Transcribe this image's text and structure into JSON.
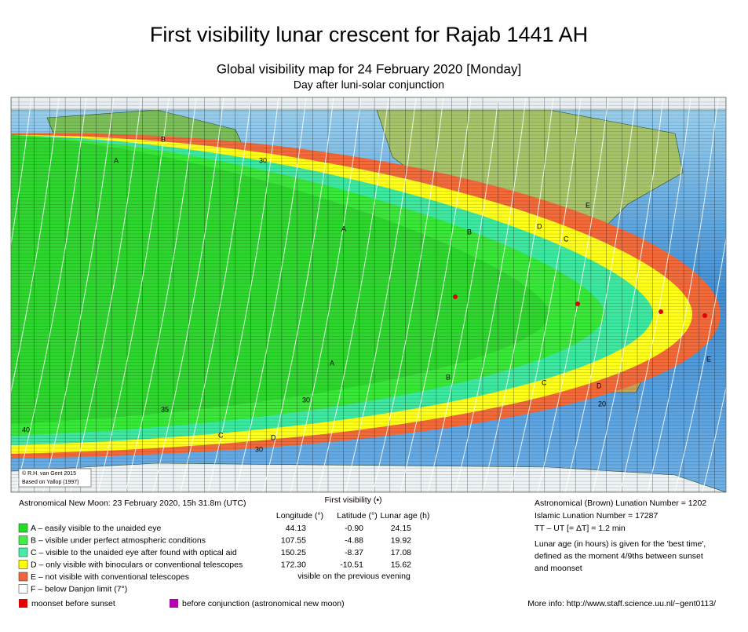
{
  "header": {
    "title": "First visibility lunar crescent for Rajab 1441 AH",
    "subtitle": "Global visibility map for 24 February 2020 [Monday]",
    "subtitle2": "Day after luni-solar conjunction"
  },
  "map": {
    "credits": [
      "© R.H. van Gent 2015",
      "Based on Yallop (1997)"
    ],
    "labels": [
      "A",
      "B",
      "C",
      "D",
      "E",
      "A",
      "B",
      "C",
      "D",
      "E",
      "30",
      "40",
      "30",
      "30",
      "35",
      "20",
      "A",
      "B",
      "C",
      "D"
    ],
    "zone_colors": {
      "A": "#2fd62f",
      "B": "#3ae83a",
      "C": "#3de9a0",
      "D": "#ffff1a",
      "E": "#f36a3a"
    }
  },
  "footer": {
    "new_moon": "Astronomical New Moon: 23 February 2020, 15h 31.8m (UTC)",
    "legend": [
      {
        "text": "A – easily visible to the unaided eye",
        "color": "#22dd22"
      },
      {
        "text": "B – visible under perfect atmospheric conditions",
        "color": "#44ee44"
      },
      {
        "text": "C – visible to the unaided eye after found with optical aid",
        "color": "#44eeaa"
      },
      {
        "text": "D – only visible with binoculars or conventional telescopes",
        "color": "#ffff00"
      },
      {
        "text": "E – not visible with conventional telescopes",
        "color": "#f0643c"
      },
      {
        "text": "F – below Danjon limit (7°)",
        "color": "#ffffff"
      }
    ],
    "extra_legend": [
      {
        "text": "moonset before sunset",
        "color": "#e00000"
      },
      {
        "text": "before conjunction (astronomical new moon)",
        "color": "#b000b0"
      }
    ],
    "first_visibility": {
      "title": "First visibility (•)",
      "columns": [
        "Longitude (°)",
        "Latitude (°)",
        "Lunar age (h)"
      ],
      "rows": [
        [
          "44.13",
          "-0.90",
          "24.15"
        ],
        [
          "107.55",
          "-4.88",
          "19.92"
        ],
        [
          "150.25",
          "-8.37",
          "17.08"
        ],
        [
          "172.30",
          "-10.51",
          "15.62"
        ]
      ],
      "note": "visible on the previous evening"
    },
    "right": [
      "Astronomical (Brown) Lunation Number = 1202",
      "Islamic Lunation Number = 17287",
      "TT – UT [= ΔT] = 1.2 min"
    ],
    "lunar_age_note": [
      "Lunar age (in hours) is given for the 'best time',",
      "defined as the moment 4/9ths between sunset",
      "and moonset"
    ],
    "more_info": "More info: http://www.staff.science.uu.nl/~gent0113/"
  }
}
